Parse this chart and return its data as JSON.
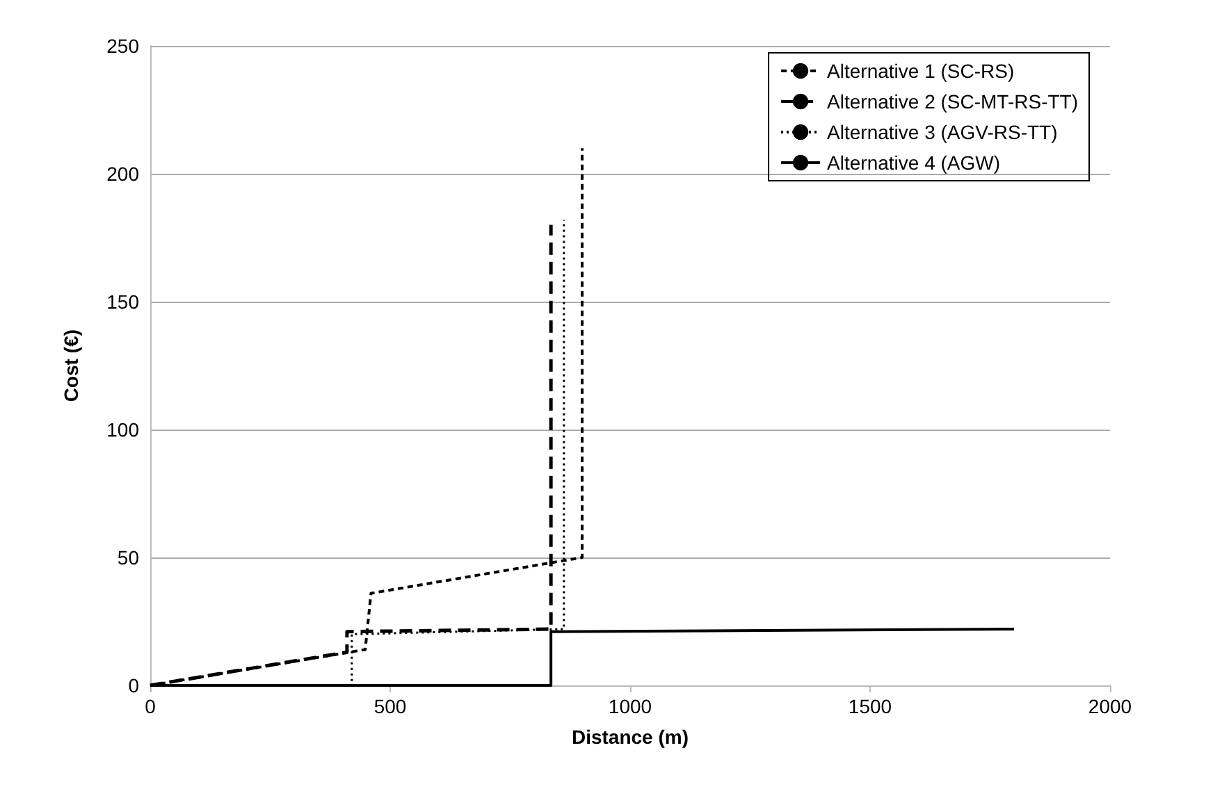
{
  "chart_data": {
    "type": "line",
    "xlabel": "Distance (m)",
    "ylabel": "Cost (€)",
    "xlim": [
      0,
      2000
    ],
    "xticks": [
      0,
      500,
      1000,
      1500,
      2000
    ],
    "ylim": [
      0,
      250
    ],
    "yticks": [
      0,
      50,
      100,
      150,
      200,
      250
    ],
    "grid": "y",
    "legend": "top right",
    "marker": "none",
    "series": [
      {
        "name": "Alternative 1 (SC-RS)",
        "color": "#000000",
        "line_style": "dashed",
        "x": [
          0,
          448,
          460,
          900,
          900
        ],
        "values": [
          0,
          14,
          36,
          50,
          210
        ]
      },
      {
        "name": "Alternative 2 (SC-MT-RS-TT)",
        "color": "#000000",
        "line_style": "longdash",
        "x": [
          0,
          410,
          410,
          835,
          835
        ],
        "values": [
          0,
          13,
          21,
          22,
          180
        ]
      },
      {
        "name": "Alternative 3 (AGV-RS-TT)",
        "color": "#000000",
        "line_style": "dotted",
        "x": [
          0,
          420,
          420,
          862,
          862
        ],
        "values": [
          0,
          0,
          20,
          22,
          182
        ]
      },
      {
        "name": "Alternative 4 (AGW)",
        "color": "#000000",
        "line_style": "solid",
        "x": [
          0,
          835,
          835,
          1800
        ],
        "values": [
          0,
          0,
          21,
          22
        ]
      }
    ]
  }
}
